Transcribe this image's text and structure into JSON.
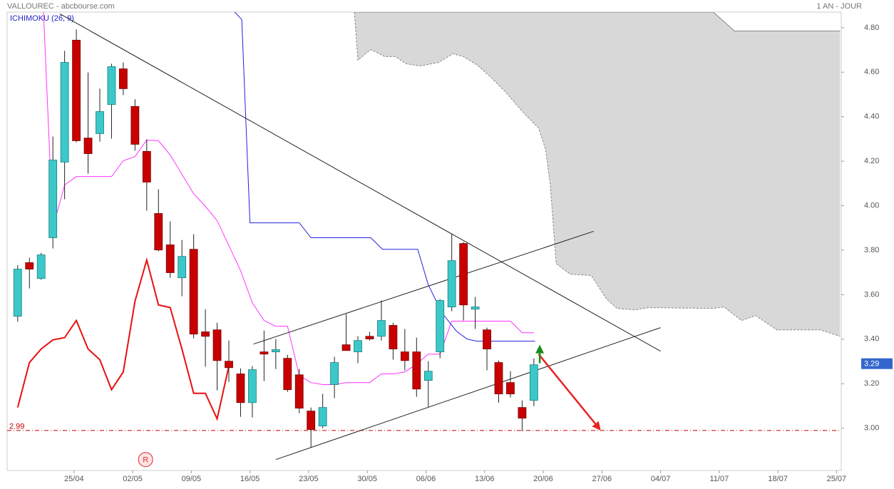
{
  "chart_data": {
    "type": "candlestick",
    "title": "VALLOUREC - abcbourse.com",
    "subtitle": "1 AN - JOUR",
    "indicator_label": "ICHIMOKU (26, 9)",
    "up_color": "#3cc8c8",
    "down_color": "#c80000",
    "x": [
      0,
      1,
      2,
      3,
      4,
      5,
      6,
      7,
      8,
      9,
      10,
      11,
      12,
      13,
      14,
      15,
      16,
      17,
      18,
      19,
      20,
      21,
      22,
      23,
      24,
      25,
      26,
      27,
      28,
      29,
      30,
      31,
      32,
      33,
      34,
      35,
      36,
      37,
      38,
      39,
      40,
      41,
      42,
      43,
      44
    ],
    "open": [
      3.503,
      3.744,
      3.673,
      3.856,
      4.196,
      4.744,
      4.304,
      4.324,
      4.455,
      4.615,
      4.446,
      4.244,
      3.965,
      3.824,
      3.676,
      3.804,
      3.433,
      3.442,
      3.301,
      3.244,
      3.115,
      3.343,
      3.343,
      3.314,
      3.24,
      3.077,
      3.01,
      3.196,
      3.375,
      3.343,
      3.413,
      3.413,
      3.462,
      3.343,
      3.343,
      3.215,
      3.343,
      3.545,
      3.83,
      3.535,
      3.442,
      3.295,
      3.205,
      3.093,
      3.125
    ],
    "high": [
      3.733,
      3.766,
      3.788,
      4.311,
      4.696,
      4.792,
      4.599,
      4.526,
      4.638,
      4.644,
      4.478,
      4.298,
      4.074,
      3.929,
      3.846,
      3.872,
      3.535,
      3.474,
      3.394,
      3.269,
      3.279,
      3.439,
      3.401,
      3.33,
      3.266,
      3.093,
      3.154,
      3.321,
      3.513,
      3.413,
      3.433,
      3.574,
      3.474,
      3.446,
      3.407,
      3.301,
      3.58,
      3.875,
      3.837,
      3.59,
      3.452,
      3.304,
      3.256,
      3.125,
      3.314
    ],
    "low": [
      3.478,
      3.628,
      3.667,
      3.808,
      4.029,
      4.285,
      4.144,
      4.288,
      4.301,
      4.497,
      4.247,
      3.978,
      3.795,
      3.676,
      3.593,
      3.404,
      3.276,
      3.17,
      3.208,
      3.051,
      3.048,
      3.212,
      3.266,
      3.163,
      3.067,
      2.913,
      3.0,
      3.135,
      3.349,
      3.292,
      3.394,
      3.394,
      3.308,
      3.26,
      3.141,
      3.096,
      3.314,
      3.526,
      3.484,
      3.446,
      3.26,
      3.115,
      3.138,
      2.987,
      3.099
    ],
    "close": [
      3.715,
      3.715,
      3.779,
      4.205,
      4.644,
      4.292,
      4.234,
      4.423,
      4.625,
      4.526,
      4.276,
      4.106,
      3.801,
      3.699,
      3.772,
      3.423,
      3.413,
      3.304,
      3.272,
      3.115,
      3.263,
      3.333,
      3.353,
      3.173,
      3.09,
      2.994,
      3.093,
      3.295,
      3.349,
      3.394,
      3.401,
      3.484,
      3.356,
      3.304,
      3.176,
      3.256,
      3.574,
      3.753,
      3.554,
      3.545,
      3.356,
      3.154,
      3.154,
      3.045,
      3.285
    ],
    "xlim": [
      -0.9,
      70.2
    ],
    "xticks": [
      {
        "value": 4.8,
        "label": "25/04"
      },
      {
        "value": 9.8,
        "label": "02/05"
      },
      {
        "value": 14.8,
        "label": "09/05"
      },
      {
        "value": 19.8,
        "label": "16/05"
      },
      {
        "value": 24.8,
        "label": "23/05"
      },
      {
        "value": 29.8,
        "label": "30/05"
      },
      {
        "value": 34.8,
        "label": "06/06"
      },
      {
        "value": 39.8,
        "label": "13/06"
      },
      {
        "value": 44.8,
        "label": "20/06"
      },
      {
        "value": 49.8,
        "label": "27/06"
      },
      {
        "value": 54.8,
        "label": "04/07"
      },
      {
        "value": 59.8,
        "label": "11/07"
      },
      {
        "value": 64.8,
        "label": "18/07"
      },
      {
        "value": 69.8,
        "label": "25/07"
      }
    ],
    "ylim": [
      2.81,
      4.87
    ],
    "yticks": [
      {
        "value": 3.0,
        "label": "3.00"
      },
      {
        "value": 3.2,
        "label": "3.20"
      },
      {
        "value": 3.4,
        "label": "3.40"
      },
      {
        "value": 3.6,
        "label": "3.60"
      },
      {
        "value": 3.8,
        "label": "3.80"
      },
      {
        "value": 4.0,
        "label": "4.00"
      },
      {
        "value": 4.2,
        "label": "4.20"
      },
      {
        "value": 4.4,
        "label": "4.40"
      },
      {
        "value": 4.6,
        "label": "4.60"
      },
      {
        "value": 4.8,
        "label": "4.80"
      }
    ],
    "cloud": {
      "color": "#d8d8d8",
      "edge_color": "#888888",
      "lower": {
        "x": [
          28.7,
          29.0,
          30.1,
          31.3,
          32.2,
          33.1,
          34.3,
          35.9,
          37.1,
          38.0,
          39.2,
          40.4,
          41.6,
          43.2,
          44.4,
          45.0,
          45.4,
          45.9,
          47.1,
          48.9,
          50.2,
          51.1,
          52.6,
          53.8,
          59.3,
          60.2,
          61.7,
          62.9,
          64.7,
          68.4,
          70.1
        ],
        "values": [
          4.87,
          4.654,
          4.702,
          4.67,
          4.67,
          4.638,
          4.628,
          4.644,
          4.683,
          4.67,
          4.631,
          4.574,
          4.51,
          4.413,
          4.349,
          4.253,
          4.093,
          3.74,
          3.692,
          3.686,
          3.58,
          3.538,
          3.532,
          3.542,
          3.538,
          3.545,
          3.484,
          3.506,
          3.442,
          3.442,
          3.413
        ]
      },
      "upper": {
        "x": [
          28.7,
          59.3,
          61.1,
          70.1
        ],
        "values": [
          4.87,
          4.87,
          4.785,
          4.785
        ]
      }
    },
    "lines": [
      {
        "color": "#ff33ff",
        "x": [
          2.2,
          3,
          4,
          5,
          6,
          7,
          8,
          9,
          10,
          11,
          12,
          13,
          14,
          15,
          16,
          17,
          18,
          19,
          20,
          21,
          22,
          23,
          24,
          25,
          26,
          27,
          28,
          29,
          30,
          31,
          32,
          33,
          34,
          35,
          36,
          37,
          38,
          39,
          40,
          41,
          42,
          43,
          44
        ],
        "values": [
          4.87,
          3.901,
          4.093,
          4.131,
          4.131,
          4.131,
          4.131,
          4.202,
          4.221,
          4.295,
          4.292,
          4.228,
          4.141,
          4.054,
          3.997,
          3.933,
          3.821,
          3.708,
          3.564,
          3.484,
          3.458,
          3.458,
          3.237,
          3.205,
          3.196,
          3.196,
          3.205,
          3.205,
          3.205,
          3.244,
          3.244,
          3.253,
          3.288,
          3.333,
          3.333,
          3.481,
          3.481,
          3.481,
          3.481,
          3.481,
          3.481,
          3.429,
          3.429
        ]
      },
      {
        "color": "#2222dd",
        "x": [
          18.5,
          19.1,
          19.8,
          24.0,
          25.0,
          30.1,
          31.1,
          34.1,
          35.0,
          36.2,
          37.4,
          38.3,
          39.1,
          44.1
        ],
        "values": [
          4.87,
          4.837,
          3.923,
          3.923,
          3.856,
          3.856,
          3.804,
          3.804,
          3.644,
          3.516,
          3.436,
          3.401,
          3.391,
          3.391
        ]
      },
      {
        "color": "#e81010",
        "width": 2,
        "x": [
          0,
          1,
          2,
          3,
          4,
          5,
          6,
          7,
          8,
          9,
          10,
          11,
          12,
          13,
          14,
          15,
          16,
          17,
          18
        ],
        "values": [
          3.093,
          3.295,
          3.356,
          3.397,
          3.407,
          3.484,
          3.356,
          3.308,
          3.173,
          3.253,
          3.571,
          3.756,
          3.554,
          3.542,
          3.356,
          3.157,
          3.157,
          3.042,
          3.279
        ]
      }
    ],
    "trendlines": [
      {
        "color": "#222222",
        "x": [
          3.6,
          54.8
        ],
        "values": [
          4.862,
          3.346
        ]
      },
      {
        "color": "#222222",
        "x": [
          20.1,
          49.1
        ],
        "values": [
          3.378,
          3.885
        ]
      },
      {
        "color": "#222222",
        "x": [
          22.0,
          54.8
        ],
        "values": [
          2.859,
          3.452
        ]
      }
    ],
    "arrows": [
      {
        "color": "#e82020",
        "x": [
          44.4,
          49.7
        ],
        "values": [
          3.333,
          2.99
        ]
      },
      {
        "color": "#1a8a1a",
        "x": [
          44.5,
          44.5
        ],
        "values": [
          3.292,
          3.375
        ]
      }
    ],
    "reference_line": {
      "value": 2.99,
      "color": "#c00000"
    },
    "last_price": {
      "value": 3.29,
      "color": "#3366cc"
    },
    "marker": {
      "x": 10.9,
      "value": 2.859,
      "label": "R",
      "color": "#e03030"
    }
  }
}
